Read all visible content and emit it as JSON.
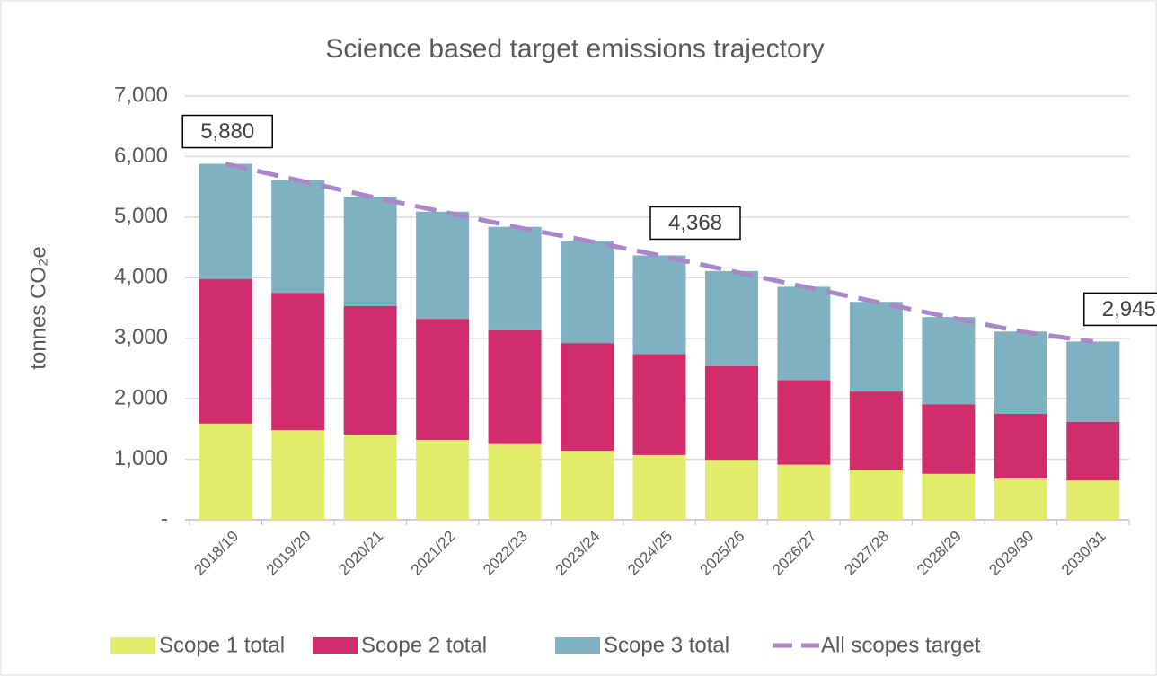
{
  "chart_data": {
    "type": "bar",
    "stacked": true,
    "title": "Science based target emissions trajectory",
    "y_label": "tonnes CO₂e",
    "categories": [
      "2018/19",
      "2019/20",
      "2020/21",
      "2021/22",
      "2022/23",
      "2023/24",
      "2024/25",
      "2025/26",
      "2026/27",
      "2027/28",
      "2028/29",
      "2029/30",
      "2030/31"
    ],
    "series": [
      {
        "name": "Scope 1 total",
        "color": "#e2ec6a",
        "values": [
          1590,
          1480,
          1410,
          1320,
          1250,
          1140,
          1070,
          990,
          910,
          830,
          760,
          680,
          650
        ]
      },
      {
        "name": "Scope 2 total",
        "color": "#d12d6c",
        "values": [
          2390,
          2270,
          2120,
          2000,
          1880,
          1780,
          1670,
          1550,
          1400,
          1290,
          1150,
          1070,
          970
        ]
      },
      {
        "name": "Scope 3 total",
        "color": "#80b1c1",
        "values": [
          1900,
          1860,
          1810,
          1770,
          1710,
          1690,
          1628,
          1570,
          1540,
          1480,
          1440,
          1360,
          1325
        ]
      },
      {
        "name": "All scopes target",
        "type": "line",
        "dashed": true,
        "color": "#a886c8",
        "values": [
          5880,
          5610,
          5340,
          5090,
          4840,
          4610,
          4368,
          4110,
          3850,
          3600,
          3350,
          3110,
          2945
        ],
        "value_labels": [
          "5,880",
          null,
          null,
          null,
          null,
          null,
          "4,368",
          null,
          null,
          null,
          null,
          null,
          "2,945"
        ]
      }
    ],
    "ylim": [
      0,
      7000
    ],
    "yticks": [
      {
        "value": 0,
        "label": "-"
      },
      {
        "value": 1000,
        "label": "1,000"
      },
      {
        "value": 2000,
        "label": "2,000"
      },
      {
        "value": 3000,
        "label": "3,000"
      },
      {
        "value": 4000,
        "label": "4,000"
      },
      {
        "value": 5000,
        "label": "5,000"
      },
      {
        "value": 6000,
        "label": "6,000"
      },
      {
        "value": 7000,
        "label": "7,000"
      }
    ],
    "grid": true,
    "legend": "bottom"
  }
}
